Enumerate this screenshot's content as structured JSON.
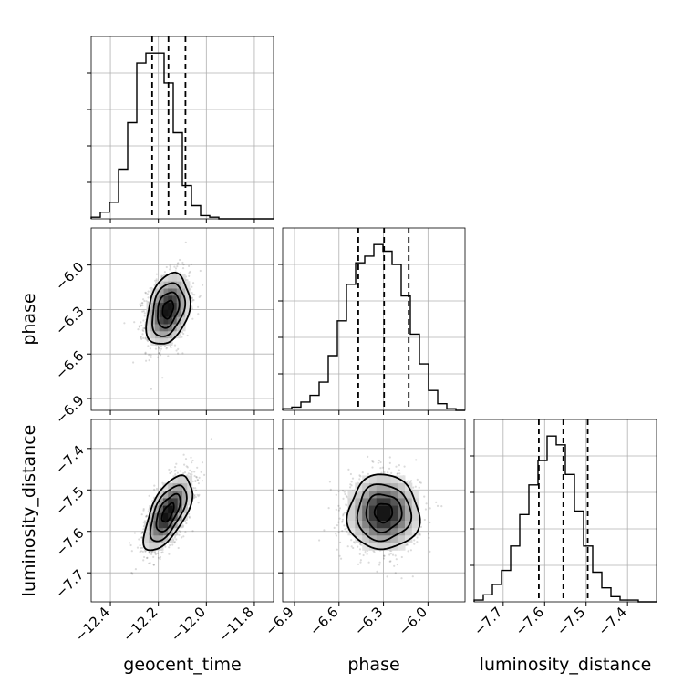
{
  "chart_data": {
    "type": "corner",
    "parameters": [
      "geocent_time",
      "phase",
      "luminosity_distance"
    ],
    "axis_labels": {
      "geocent_time": "geocent_time",
      "phase": "phase",
      "luminosity_distance": "luminosity_distance"
    },
    "ranges": {
      "geocent_time": [
        -12.48,
        -11.72
      ],
      "phase": [
        -6.98,
        -5.75
      ],
      "luminosity_distance": [
        -7.77,
        -7.33
      ]
    },
    "ticks": {
      "geocent_time": [
        -12.4,
        -12.2,
        -12.0,
        -11.8
      ],
      "phase": [
        -6.9,
        -6.6,
        -6.3,
        -6.0
      ],
      "luminosity_distance": [
        -7.7,
        -7.6,
        -7.5,
        -7.4
      ]
    },
    "tick_labels": {
      "geocent_time": [
        "−12.4",
        "−12.2",
        "−12.0",
        "−11.8"
      ],
      "phase": [
        "−6.9",
        "−6.6",
        "−6.3",
        "−6.0"
      ],
      "luminosity_distance": [
        "−7.7",
        "−7.6",
        "−7.5",
        "−7.4"
      ]
    },
    "grid": true,
    "histograms": {
      "geocent_time": {
        "bins": 20,
        "counts": [
          1,
          4,
          10,
          30,
          58,
          94,
          100,
          100,
          82,
          52,
          20,
          8,
          2,
          1,
          0,
          0,
          0,
          0,
          0,
          0
        ],
        "quantiles": [
          -12.226,
          -12.158,
          -12.087
        ]
      },
      "phase": {
        "bins": 20,
        "counts": [
          1,
          2,
          5,
          9,
          17,
          33,
          54,
          76,
          89,
          93,
          100,
          96,
          88,
          69,
          46,
          28,
          12,
          4,
          1,
          0
        ],
        "quantiles": [
          -6.47,
          -6.296,
          -6.13
        ]
      },
      "luminosity_distance": {
        "bins": 20,
        "counts": [
          1,
          4,
          10,
          18,
          32,
          50,
          67,
          81,
          95,
          90,
          73,
          52,
          32,
          17,
          8,
          3,
          1,
          1,
          0,
          0
        ],
        "quantiles": [
          -7.614,
          -7.555,
          -7.496
        ]
      }
    },
    "joint": [
      {
        "x": "geocent_time",
        "y": "phase",
        "mean": [
          -12.16,
          -6.3
        ],
        "std": [
          0.045,
          0.12
        ],
        "correlation": 0.3
      },
      {
        "x": "geocent_time",
        "y": "luminosity_distance",
        "mean": [
          -12.16,
          -7.555
        ],
        "std": [
          0.05,
          0.045
        ],
        "correlation": 0.62
      },
      {
        "x": "phase",
        "y": "luminosity_distance",
        "mean": [
          -6.3,
          -7.555
        ],
        "std": [
          0.12,
          0.045
        ],
        "correlation": 0.0
      }
    ],
    "contour_levels_sigma": [
      0.5,
      1.0,
      1.5,
      2.0
    ]
  }
}
